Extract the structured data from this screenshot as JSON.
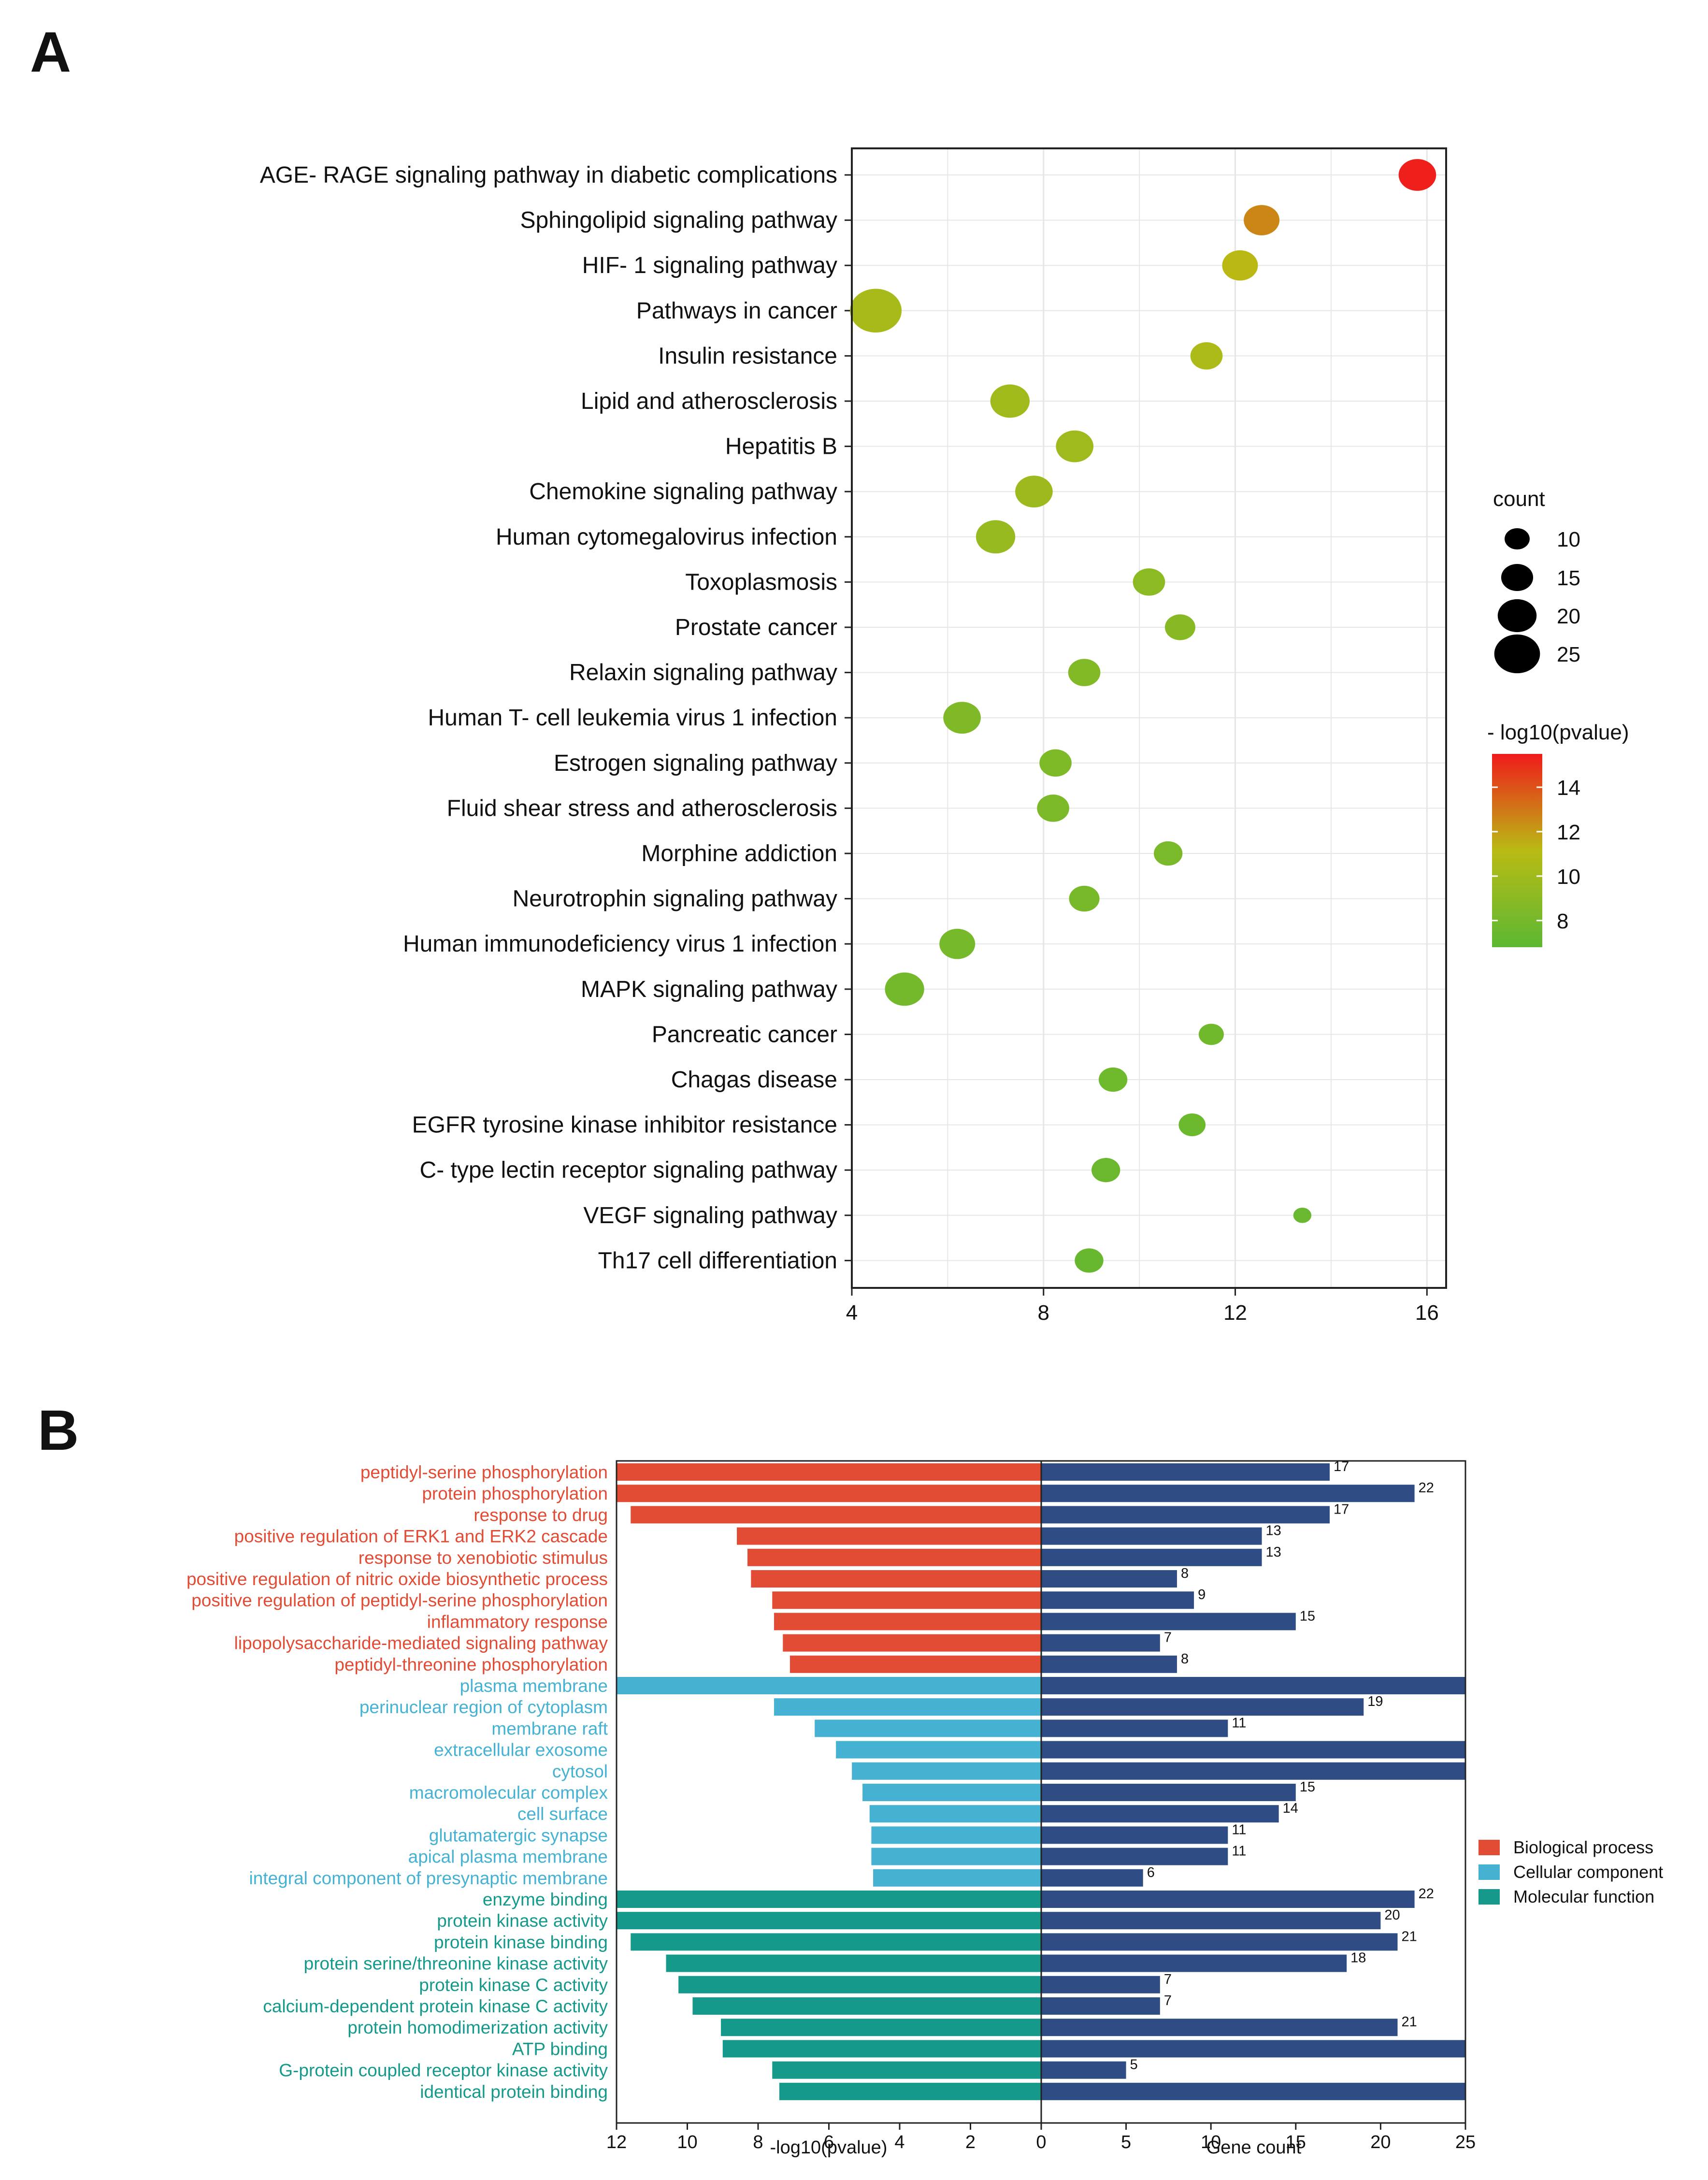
{
  "panels": {
    "a_label": "A",
    "b_label": "B"
  },
  "colors": {
    "gradient_high": "#f01b1b",
    "gradient_mid": "#b9bb14",
    "gradient_low": "#5cb833",
    "bar_count": "#2f4c84",
    "category": {
      "bp": "#e24b34",
      "cc": "#45b1d3",
      "mf": "#14998a"
    }
  },
  "chart_data": [
    {
      "type": "scatter",
      "title": "",
      "xlabel": "",
      "ylabel": "",
      "xlim": [
        4,
        16.4
      ],
      "xticks": [
        4,
        8,
        12,
        16
      ],
      "grid": true,
      "size_legend": {
        "title": "count",
        "values": [
          10,
          15,
          20,
          25
        ]
      },
      "color_legend": {
        "title": "- log10(pvalue)",
        "ticks": [
          14,
          12,
          10,
          8
        ],
        "range": [
          6.8,
          15.5
        ]
      },
      "points": [
        {
          "term": "AGE- RAGE signaling pathway in diabetic complications",
          "x": 15.8,
          "count": 18,
          "pvalue": 15.4
        },
        {
          "term": "Sphingolipid signaling pathway",
          "x": 12.55,
          "count": 17,
          "pvalue": 12.6
        },
        {
          "term": "HIF- 1 signaling pathway",
          "x": 12.1,
          "count": 17,
          "pvalue": 11.2
        },
        {
          "term": "Pathways in cancer",
          "x": 4.5,
          "count": 26,
          "pvalue": 10.3
        },
        {
          "term": "Insulin resistance",
          "x": 11.4,
          "count": 15,
          "pvalue": 10.6
        },
        {
          "term": "Lipid and atherosclerosis",
          "x": 7.3,
          "count": 19,
          "pvalue": 10.0
        },
        {
          "term": "Hepatitis B",
          "x": 8.65,
          "count": 18,
          "pvalue": 9.9
        },
        {
          "term": "Chemokine signaling pathway",
          "x": 7.8,
          "count": 18,
          "pvalue": 9.8
        },
        {
          "term": "Human cytomegalovirus infection",
          "x": 7.0,
          "count": 19,
          "pvalue": 9.5
        },
        {
          "term": "Toxoplasmosis",
          "x": 10.2,
          "count": 15,
          "pvalue": 9.0
        },
        {
          "term": "Prostate cancer",
          "x": 10.85,
          "count": 14,
          "pvalue": 8.8
        },
        {
          "term": "Relaxin signaling pathway",
          "x": 8.85,
          "count": 15,
          "pvalue": 8.6
        },
        {
          "term": "Human T- cell leukemia virus 1 infection",
          "x": 6.3,
          "count": 18,
          "pvalue": 8.5
        },
        {
          "term": "Estrogen signaling pathway",
          "x": 8.25,
          "count": 15,
          "pvalue": 8.4
        },
        {
          "term": "Fluid shear stress and atherosclerosis",
          "x": 8.2,
          "count": 15,
          "pvalue": 8.3
        },
        {
          "term": "Morphine addiction",
          "x": 10.6,
          "count": 13,
          "pvalue": 8.2
        },
        {
          "term": "Neurotrophin signaling pathway",
          "x": 8.85,
          "count": 14,
          "pvalue": 8.1
        },
        {
          "term": "Human immunodeficiency virus 1 infection",
          "x": 6.2,
          "count": 17,
          "pvalue": 8.0
        },
        {
          "term": "MAPK signaling pathway",
          "x": 5.1,
          "count": 19,
          "pvalue": 7.9
        },
        {
          "term": "Pancreatic cancer",
          "x": 11.5,
          "count": 11,
          "pvalue": 7.8
        },
        {
          "term": "Chagas disease",
          "x": 9.45,
          "count": 13,
          "pvalue": 7.7
        },
        {
          "term": "EGFR tyrosine kinase inhibitor resistance",
          "x": 11.1,
          "count": 12,
          "pvalue": 7.6
        },
        {
          "term": "C- type lectin receptor signaling pathway",
          "x": 9.3,
          "count": 13,
          "pvalue": 7.5
        },
        {
          "term": "VEGF signaling pathway",
          "x": 13.4,
          "count": 7,
          "pvalue": 7.4
        },
        {
          "term": "Th17 cell differentiation",
          "x": 8.95,
          "count": 13,
          "pvalue": 7.3
        }
      ]
    },
    {
      "type": "bar",
      "title": "",
      "left_axis": {
        "xlabel": "-log10(pvalue)",
        "xlim": [
          0,
          12
        ],
        "ticks": [
          12,
          10,
          8,
          6,
          4,
          2,
          0
        ]
      },
      "right_axis": {
        "xlabel": "Gene count",
        "xlim": [
          0,
          25
        ],
        "ticks": [
          0,
          5,
          10,
          15,
          20,
          25
        ]
      },
      "legend": [
        {
          "key": "bp",
          "label": "Biological process"
        },
        {
          "key": "cc",
          "label": "Cellular component"
        },
        {
          "key": "mf",
          "label": "Molecular function"
        }
      ],
      "terms": [
        {
          "term": "peptidyl-serine phosphorylation",
          "category": "bp",
          "pvalue": 12.0,
          "count": 17,
          "count_label": "17"
        },
        {
          "term": "protein phosphorylation",
          "category": "bp",
          "pvalue": 12.0,
          "count": 22,
          "count_label": "22"
        },
        {
          "term": "response to drug",
          "category": "bp",
          "pvalue": 11.6,
          "count": 17,
          "count_label": "17"
        },
        {
          "term": "positive regulation of ERK1 and ERK2 cascade",
          "category": "bp",
          "pvalue": 8.6,
          "count": 13,
          "count_label": "13"
        },
        {
          "term": "response to xenobiotic stimulus",
          "category": "bp",
          "pvalue": 8.3,
          "count": 13,
          "count_label": "13"
        },
        {
          "term": "positive regulation of nitric oxide biosynthetic process",
          "category": "bp",
          "pvalue": 8.2,
          "count": 8,
          "count_label": "8"
        },
        {
          "term": "positive regulation of peptidyl-serine phosphorylation",
          "category": "bp",
          "pvalue": 7.6,
          "count": 9,
          "count_label": "9"
        },
        {
          "term": "inflammatory response",
          "category": "bp",
          "pvalue": 7.55,
          "count": 15,
          "count_label": "15"
        },
        {
          "term": "lipopolysaccharide-mediated signaling pathway",
          "category": "bp",
          "pvalue": 7.3,
          "count": 7,
          "count_label": "7"
        },
        {
          "term": "peptidyl-threonine phosphorylation",
          "category": "bp",
          "pvalue": 7.1,
          "count": 8,
          "count_label": "8"
        },
        {
          "term": "plasma membrane",
          "category": "cc",
          "pvalue": 12.0,
          "count": 25,
          "count_label": ""
        },
        {
          "term": "perinuclear region of cytoplasm",
          "category": "cc",
          "pvalue": 7.55,
          "count": 19,
          "count_label": "19"
        },
        {
          "term": "membrane raft",
          "category": "cc",
          "pvalue": 6.4,
          "count": 11,
          "count_label": "11"
        },
        {
          "term": "extracellular exosome",
          "category": "cc",
          "pvalue": 5.8,
          "count": 25,
          "count_label": ""
        },
        {
          "term": "cytosol",
          "category": "cc",
          "pvalue": 5.35,
          "count": 25,
          "count_label": ""
        },
        {
          "term": "macromolecular complex",
          "category": "cc",
          "pvalue": 5.05,
          "count": 15,
          "count_label": "15"
        },
        {
          "term": "cell surface",
          "category": "cc",
          "pvalue": 4.85,
          "count": 14,
          "count_label": "14"
        },
        {
          "term": "glutamatergic synapse",
          "category": "cc",
          "pvalue": 4.8,
          "count": 11,
          "count_label": "11"
        },
        {
          "term": "apical plasma membrane",
          "category": "cc",
          "pvalue": 4.8,
          "count": 11,
          "count_label": "11"
        },
        {
          "term": "integral component of presynaptic membrane",
          "category": "cc",
          "pvalue": 4.75,
          "count": 6,
          "count_label": "6"
        },
        {
          "term": "enzyme binding",
          "category": "mf",
          "pvalue": 12.0,
          "count": 22,
          "count_label": "22"
        },
        {
          "term": "protein kinase activity",
          "category": "mf",
          "pvalue": 12.0,
          "count": 20,
          "count_label": "20"
        },
        {
          "term": "protein kinase binding",
          "category": "mf",
          "pvalue": 11.6,
          "count": 21,
          "count_label": "21"
        },
        {
          "term": "protein serine/threonine kinase activity",
          "category": "mf",
          "pvalue": 10.6,
          "count": 18,
          "count_label": "18"
        },
        {
          "term": "protein kinase C activity",
          "category": "mf",
          "pvalue": 10.25,
          "count": 7,
          "count_label": "7"
        },
        {
          "term": "calcium-dependent protein kinase C activity",
          "category": "mf",
          "pvalue": 9.85,
          "count": 7,
          "count_label": "7"
        },
        {
          "term": "protein homodimerization activity",
          "category": "mf",
          "pvalue": 9.05,
          "count": 21,
          "count_label": "21"
        },
        {
          "term": "ATP binding",
          "category": "mf",
          "pvalue": 9.0,
          "count": 25,
          "count_label": ""
        },
        {
          "term": "G-protein coupled receptor kinase activity",
          "category": "mf",
          "pvalue": 7.6,
          "count": 5,
          "count_label": "5"
        },
        {
          "term": "identical protein binding",
          "category": "mf",
          "pvalue": 7.4,
          "count": 25,
          "count_label": ""
        }
      ]
    }
  ]
}
